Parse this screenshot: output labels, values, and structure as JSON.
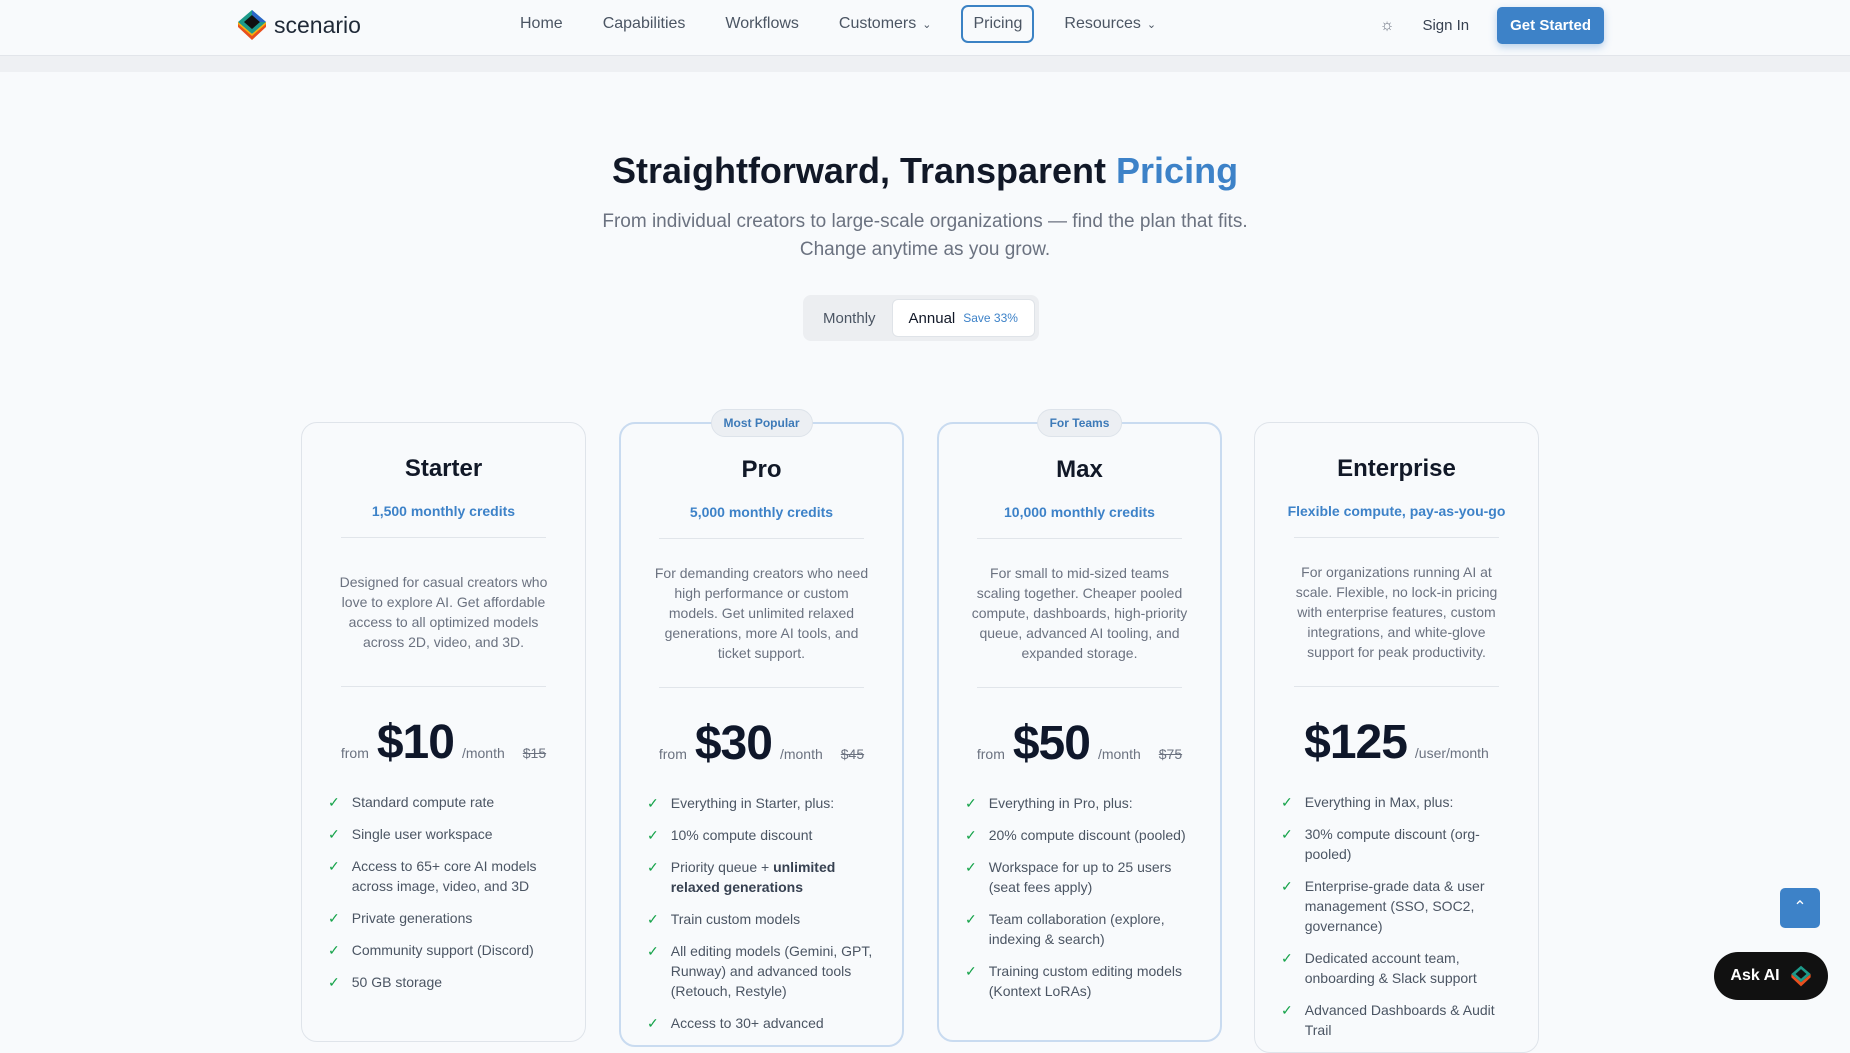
{
  "nav": {
    "brand": "scenario",
    "links": [
      {
        "label": "Home"
      },
      {
        "label": "Capabilities"
      },
      {
        "label": "Workflows"
      },
      {
        "label": "Customers",
        "dropdown": true
      },
      {
        "label": "Pricing",
        "active": true
      },
      {
        "label": "Resources",
        "dropdown": true
      }
    ],
    "sign_in": "Sign In",
    "get_started": "Get Started"
  },
  "hero": {
    "title_main": "Straightforward, Transparent ",
    "title_accent": "Pricing",
    "subtitle": "From individual creators to large-scale organizations — find the plan that fits. Change anytime as you grow."
  },
  "billing": {
    "monthly": "Monthly",
    "annual": "Annual",
    "save": "Save 33%",
    "selected": "Annual"
  },
  "plans": [
    {
      "name": "Starter",
      "badge": "",
      "credits": "1,500 monthly credits",
      "desc": "Designed for casual creators who love to explore AI. Get affordable access to all optimized models across 2D, video, and 3D.",
      "from": "from",
      "price": "$10",
      "per": "/month",
      "old": "$15",
      "features": [
        "Standard compute rate",
        "Single user workspace",
        "Access to 65+ core AI models across image, video, and 3D",
        "Private generations",
        "Community support (Discord)",
        "50 GB storage"
      ]
    },
    {
      "name": "Pro",
      "badge": "Most Popular",
      "credits": "5,000 monthly credits",
      "desc": "For demanding creators who need high performance or custom models. Get unlimited relaxed generations, more AI tools, and ticket support.",
      "from": "from",
      "price": "$30",
      "per": "/month",
      "old": "$45",
      "features": [
        "Everything in Starter, plus:",
        "10% compute discount",
        "Priority queue + ",
        "Train custom models",
        "All editing models (Gemini, GPT, Runway) and advanced tools (Retouch, Restyle)",
        "Access to 30+ advanced"
      ],
      "bold_feature": "unlimited relaxed generations"
    },
    {
      "name": "Max",
      "badge": "For Teams",
      "credits": "10,000 monthly credits",
      "desc": "For small to mid-sized teams scaling together. Cheaper pooled compute, dashboards, high-priority queue, advanced AI tooling, and expanded storage.",
      "from": "from",
      "price": "$50",
      "per": "/month",
      "old": "$75",
      "features": [
        "Everything in Pro, plus:",
        "20% compute discount (pooled)",
        "Workspace for up to 25 users (seat fees apply)",
        "Team collaboration (explore, indexing & search)",
        "Training custom editing models (Kontext LoRAs)"
      ]
    },
    {
      "name": "Enterprise",
      "badge": "",
      "credits": "Flexible compute, pay-as-you-go",
      "desc": "For organizations running AI at scale. Flexible, no lock-in pricing with enterprise features, custom integrations, and white-glove support for peak productivity.",
      "from": "",
      "price": "$125",
      "per": "/user/month",
      "old": "",
      "features": [
        "Everything in Max, plus:",
        "30% compute discount (org-pooled)",
        "Enterprise-grade data & user management (SSO, SOC2, governance)",
        "Dedicated account team, onboarding & Slack support",
        "Advanced Dashboards & Audit Trail"
      ]
    }
  ],
  "floating": {
    "ask_ai": "Ask AI",
    "scroll_top_icon": "chevron-up-icon"
  },
  "colors": {
    "accent": "#3d82c8",
    "check": "#16a34a"
  }
}
